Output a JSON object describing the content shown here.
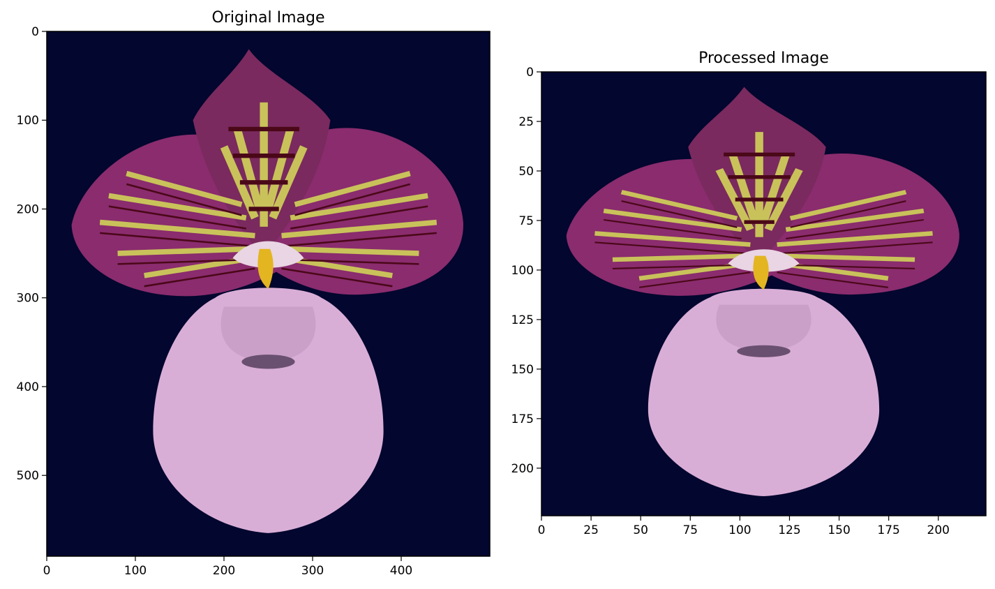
{
  "chart_data": [
    {
      "type": "image",
      "title": "Original Image",
      "image_size": [
        500,
        591
      ],
      "xlim": [
        0,
        500
      ],
      "ylim": [
        591,
        0
      ],
      "x_ticks": [
        0,
        100,
        200,
        300,
        400
      ],
      "y_ticks": [
        0,
        100,
        200,
        300,
        400,
        500
      ],
      "content": "orchid-flower-photo",
      "background_color": "#03062e",
      "colors": {
        "petal_purple": "#8a2c6e",
        "vein_dark": "#4a0818",
        "vein_yellow": "#c9c25a",
        "pouch_pink": "#d9aed6",
        "staminode_yellow": "#e3b520"
      }
    },
    {
      "type": "image",
      "title": "Processed Image",
      "image_size": [
        224,
        224
      ],
      "xlim": [
        0,
        224
      ],
      "ylim": [
        224,
        0
      ],
      "x_ticks": [
        0,
        25,
        50,
        75,
        100,
        125,
        150,
        175,
        200
      ],
      "y_ticks": [
        0,
        25,
        50,
        75,
        100,
        125,
        150,
        175,
        200
      ],
      "content": "orchid-flower-photo",
      "background_color": "#03062e"
    }
  ]
}
